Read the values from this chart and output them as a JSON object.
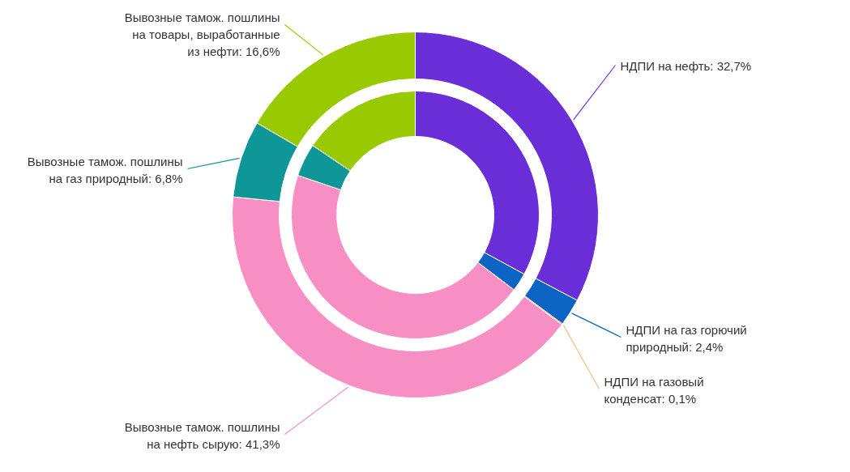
{
  "chart_data": {
    "type": "donut",
    "categories": [
      "НДПИ на нефть",
      "НДПИ на газ горючий природный",
      "НДПИ на газовый конденсат",
      "Вывозные тамож. пошлины на нефть сырую",
      "Вывозные тамож. пошлины на газ природный",
      "Вывозные тамож. пошлины на товары, выработанные из нефти"
    ],
    "colors": [
      "#6a2ed8",
      "#0b63c4",
      "#f5c08a",
      "#f78fc5",
      "#0f9696",
      "#99c900"
    ],
    "series": [
      {
        "values": [
          32.7,
          2.4,
          0.1,
          41.3,
          6.8,
          16.6
        ],
        "value_labels": [
          "32,7%",
          "2,4%",
          "0,1%",
          "41,3%",
          "6,8%",
          "16,6%"
        ]
      },
      {
        "values": [
          32.9,
          2.4,
          null,
          44.8,
          4.3,
          15.5
        ]
      }
    ]
  }
}
